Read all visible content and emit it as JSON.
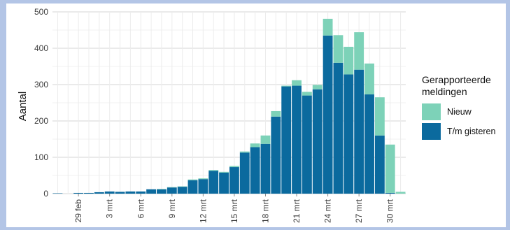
{
  "chart_data": {
    "type": "bar",
    "stacked": true,
    "ylabel": "Aantal",
    "xlabel": "",
    "ylim": [
      0,
      500
    ],
    "yticks": [
      0,
      100,
      200,
      300,
      400,
      500
    ],
    "grid": true,
    "legend_position": "right",
    "legend_title": [
      "Gerapporteerde",
      "meldingen"
    ],
    "x_tick_labels": [
      "29 feb",
      "3 mrt",
      "6 mrt",
      "9 mrt",
      "12 mrt",
      "15 mrt",
      "18 mrt",
      "21 mrt",
      "24 mrt",
      "27 mrt",
      "30 mrt"
    ],
    "categories": [
      "27 feb",
      "28 feb",
      "29 feb",
      "1 mrt",
      "2 mrt",
      "3 mrt",
      "4 mrt",
      "5 mrt",
      "6 mrt",
      "7 mrt",
      "8 mrt",
      "9 mrt",
      "10 mrt",
      "11 mrt",
      "12 mrt",
      "13 mrt",
      "14 mrt",
      "15 mrt",
      "16 mrt",
      "17 mrt",
      "18 mrt",
      "19 mrt",
      "20 mrt",
      "21 mrt",
      "22 mrt",
      "23 mrt",
      "24 mrt",
      "25 mrt",
      "26 mrt",
      "27 mrt",
      "28 mrt",
      "29 mrt",
      "30 mrt",
      "31 mrt"
    ],
    "series": [
      {
        "name": "T/m gisteren",
        "color": "#0b6a9e",
        "values": [
          1,
          0,
          2,
          2,
          4,
          6,
          5,
          6,
          6,
          12,
          12,
          17,
          19,
          37,
          40,
          63,
          58,
          73,
          113,
          128,
          137,
          212,
          295,
          297,
          270,
          287,
          435,
          360,
          328,
          341,
          273,
          160,
          2,
          0
        ]
      },
      {
        "name": "Nieuw",
        "color": "#7dd2b8",
        "values": [
          0,
          0,
          0,
          0,
          0,
          0,
          0,
          0,
          0,
          0,
          1,
          1,
          1,
          2,
          2,
          2,
          2,
          3,
          3,
          10,
          23,
          15,
          2,
          15,
          10,
          12,
          46,
          76,
          76,
          103,
          85,
          105,
          133,
          5
        ]
      }
    ]
  }
}
